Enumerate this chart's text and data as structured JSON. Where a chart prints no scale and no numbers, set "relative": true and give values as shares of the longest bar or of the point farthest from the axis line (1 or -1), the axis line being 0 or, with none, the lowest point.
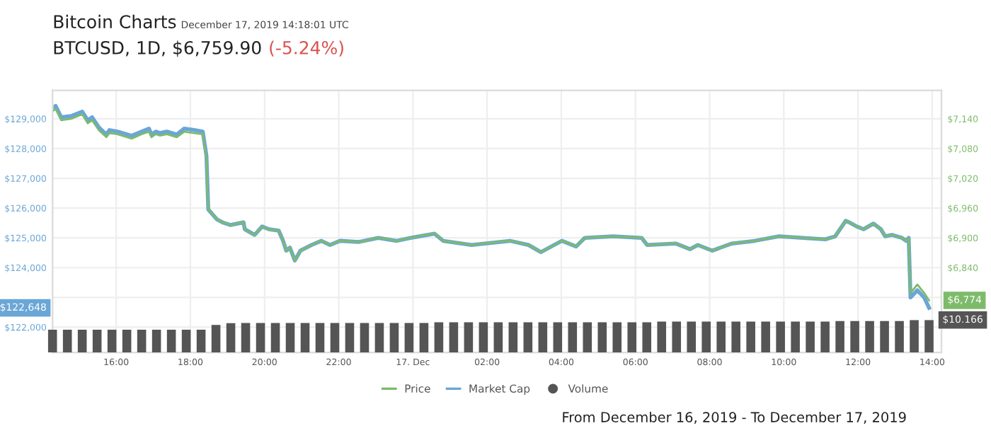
{
  "chart_data": [
    {
      "type": "line",
      "title": "Bitcoin Charts",
      "subtitle": "December 17, 2019 14:18:01 UTC",
      "annotations": [
        "BTCUSD, 1D, $6,759.90",
        "(-5.24%)",
        "From December 16, 2019 - To December 17, 2019",
        "$10.166",
        "$6,774",
        "$122,648"
      ],
      "x": [
        "2019-12-16T14:17",
        "2019-12-16T14:22",
        "2019-12-16T14:31",
        "2019-12-16T14:47",
        "2019-12-16T15:05",
        "2019-12-16T15:14",
        "2019-12-16T15:21",
        "2019-12-16T15:32",
        "2019-12-16T15:44",
        "2019-12-16T15:49",
        "2019-12-16T16:02",
        "2019-12-16T16:25",
        "2019-12-16T16:41",
        "2019-12-16T16:53",
        "2019-12-16T16:57",
        "2019-12-16T17:04",
        "2019-12-16T17:11",
        "2019-12-16T17:22",
        "2019-12-16T17:38",
        "2019-12-16T17:50",
        "2019-12-16T18:06",
        "2019-12-16T18:20",
        "2019-12-16T18:26",
        "2019-12-16T18:29",
        "2019-12-16T18:43",
        "2019-12-16T18:52",
        "2019-12-16T19:05",
        "2019-12-16T19:26",
        "2019-12-16T19:28",
        "2019-12-16T19:44",
        "2019-12-16T19:56",
        "2019-12-16T20:07",
        "2019-12-16T20:23",
        "2019-12-16T20:30",
        "2019-12-16T20:35",
        "2019-12-16T20:41",
        "2019-12-16T20:49",
        "2019-12-16T20:58",
        "2019-12-16T21:16",
        "2019-12-16T21:32",
        "2019-12-16T21:46",
        "2019-12-16T22:02",
        "2019-12-16T22:32",
        "2019-12-16T23:04",
        "2019-12-16T23:34",
        "2019-12-16T23:56",
        "2019-12-17T00:35",
        "2019-12-17T00:49",
        "2019-12-17T01:35",
        "2019-12-17T02:37",
        "2019-12-17T03:07",
        "2019-12-17T03:27",
        "2019-12-17T04:01",
        "2019-12-17T04:24",
        "2019-12-17T04:38",
        "2019-12-17T05:24",
        "2019-12-17T06:10",
        "2019-12-17T06:19",
        "2019-12-17T07:05",
        "2019-12-17T07:28",
        "2019-12-17T07:41",
        "2019-12-17T08:04",
        "2019-12-17T08:36",
        "2019-12-17T09:13",
        "2019-12-17T09:52",
        "2019-12-17T10:31",
        "2019-12-17T11:07",
        "2019-12-17T11:23",
        "2019-12-17T11:40",
        "2019-12-17T11:46",
        "2019-12-17T11:58",
        "2019-12-17T12:09",
        "2019-12-17T12:25",
        "2019-12-17T12:37",
        "2019-12-17T12:44",
        "2019-12-17T12:55",
        "2019-12-17T13:11",
        "2019-12-17T13:18",
        "2019-12-17T13:22",
        "2019-12-17T13:25",
        "2019-12-17T13:36",
        "2019-12-17T13:47",
        "2019-12-17T13:55"
      ],
      "series": [
        {
          "name": "Price",
          "color": "#7dbb6a",
          "axis": "y2",
          "values": [
            7155,
            7160,
            7137,
            7140,
            7149,
            7131,
            7137,
            7117,
            7103,
            7111,
            7109,
            7100,
            7109,
            7114,
            7103,
            7109,
            7106,
            7109,
            7103,
            7114,
            7111,
            7109,
            7060,
            6957,
            6937,
            6931,
            6926,
            6931,
            6917,
            6906,
            6923,
            6917,
            6914,
            6894,
            6874,
            6880,
            6854,
            6874,
            6886,
            6894,
            6886,
            6894,
            6891,
            6900,
            6894,
            6900,
            6909,
            6894,
            6886,
            6894,
            6886,
            6871,
            6894,
            6883,
            6900,
            6903,
            6900,
            6886,
            6889,
            6877,
            6886,
            6874,
            6889,
            6894,
            6903,
            6900,
            6897,
            6903,
            6934,
            6931,
            6923,
            6917,
            6929,
            6917,
            6903,
            6906,
            6900,
            6894,
            6900,
            6789,
            6806,
            6789,
            6774
          ]
        },
        {
          "name": "Market Cap",
          "color": "#6aa6d6",
          "values": [
            129350,
            129430,
            129050,
            129090,
            129240,
            128950,
            129050,
            128710,
            128470,
            128620,
            128570,
            128430,
            128570,
            128670,
            128470,
            128570,
            128520,
            128570,
            128470,
            128670,
            128620,
            128570,
            127760,
            125950,
            125620,
            125520,
            125430,
            125520,
            125290,
            125100,
            125380,
            125290,
            125240,
            124900,
            124570,
            124670,
            124240,
            124570,
            124760,
            124900,
            124760,
            124900,
            124860,
            125000,
            124900,
            125000,
            125140,
            124900,
            124760,
            124900,
            124760,
            124520,
            124900,
            124710,
            125000,
            125050,
            125000,
            124760,
            124810,
            124620,
            124760,
            124570,
            124810,
            124900,
            125050,
            125000,
            124950,
            125050,
            125570,
            125520,
            125380,
            125290,
            125480,
            125290,
            125050,
            125100,
            125000,
            124900,
            125000,
            123000,
            123240,
            123000,
            122648
          ]
        }
      ],
      "xlim": [
        "2019-12-16T14:17",
        "2019-12-17T14:15"
      ],
      "xticks": [
        {
          "value": "2019-12-16T16:00",
          "label": "16:00"
        },
        {
          "value": "2019-12-16T18:00",
          "label": "18:00"
        },
        {
          "value": "2019-12-16T20:00",
          "label": "20:00"
        },
        {
          "value": "2019-12-16T22:00",
          "label": "22:00"
        },
        {
          "value": "2019-12-17T00:00",
          "label": "17. Dec"
        },
        {
          "value": "2019-12-17T02:00",
          "label": "02:00"
        },
        {
          "value": "2019-12-17T04:00",
          "label": "04:00"
        },
        {
          "value": "2019-12-17T06:00",
          "label": "06:00"
        },
        {
          "value": "2019-12-17T08:00",
          "label": "08:00"
        },
        {
          "value": "2019-12-17T10:00",
          "label": "10:00"
        },
        {
          "value": "2019-12-17T12:00",
          "label": "12:00"
        },
        {
          "value": "2019-12-17T14:00",
          "label": "14:00"
        }
      ],
      "ylim": [
        121150,
        129950
      ],
      "yticks": [
        {
          "value": 122000,
          "label": "$122,000"
        },
        {
          "value": 123000,
          "label": null
        },
        {
          "value": 124000,
          "label": "$124,000"
        },
        {
          "value": 125000,
          "label": "$125,000"
        },
        {
          "value": 126000,
          "label": "$126,000"
        },
        {
          "value": 127000,
          "label": "$127,000"
        },
        {
          "value": 128000,
          "label": "$128,000"
        },
        {
          "value": 129000,
          "label": "$129,000"
        }
      ],
      "y2lim": [
        6669,
        7197
      ],
      "y2ticks": [
        {
          "value": 6840,
          "label": "$6,840"
        },
        {
          "value": 6900,
          "label": "$6,900"
        },
        {
          "value": 6960,
          "label": "$6,960"
        },
        {
          "value": 7020,
          "label": "$7,020"
        },
        {
          "value": 7080,
          "label": "$7,080"
        },
        {
          "value": 7140,
          "label": "$7,140"
        }
      ],
      "grid": true,
      "legend": "bottom",
      "marker": "none",
      "line_style": "solid"
    },
    {
      "type": "bar",
      "relative": true,
      "categories": [
        null,
        null,
        null,
        null,
        null,
        null,
        null,
        null,
        null,
        null,
        null,
        null,
        null,
        null,
        null,
        null,
        null,
        null,
        null,
        null,
        null,
        null,
        null,
        null,
        null,
        null,
        null,
        null,
        null,
        null,
        null,
        null,
        null,
        null,
        null,
        null,
        null,
        null,
        null,
        null,
        null,
        null,
        null,
        null,
        null,
        null,
        null,
        null,
        null,
        null,
        null,
        null,
        null,
        null,
        null,
        null,
        null,
        null,
        null,
        null
      ],
      "series": [
        {
          "name": "Volume",
          "color": "#555555",
          "values": [
            0.7,
            0.7,
            0.7,
            0.7,
            0.7,
            0.7,
            0.7,
            0.7,
            0.7,
            0.7,
            0.7,
            0.85,
            0.9,
            0.91,
            0.91,
            0.91,
            0.91,
            0.91,
            0.91,
            0.91,
            0.91,
            0.91,
            0.91,
            0.91,
            0.91,
            0.91,
            0.93,
            0.93,
            0.93,
            0.93,
            0.93,
            0.93,
            0.93,
            0.93,
            0.93,
            0.93,
            0.93,
            0.93,
            0.93,
            0.93,
            0.93,
            0.95,
            0.95,
            0.95,
            0.95,
            0.95,
            0.95,
            0.95,
            0.95,
            0.95,
            0.95,
            0.95,
            0.95,
            0.97,
            0.97,
            0.97,
            0.97,
            0.97,
            1.0,
            1.0
          ]
        }
      ]
    }
  ]
}
